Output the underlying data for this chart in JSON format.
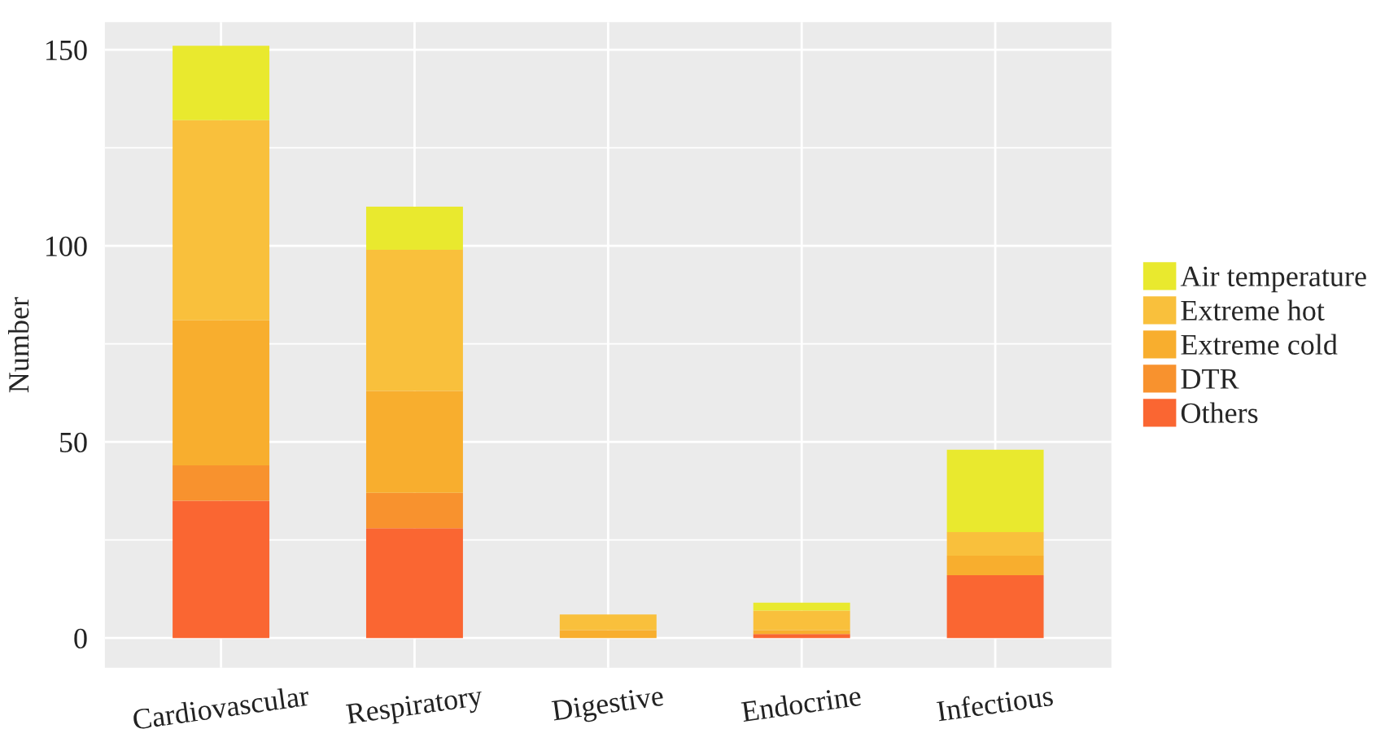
{
  "chart_data": {
    "type": "bar",
    "stacked": true,
    "ylabel": "Number",
    "categories": [
      "Cardiovascular",
      "Respiratory",
      "Digestive",
      "Endocrine",
      "Infectious"
    ],
    "series": [
      {
        "name": "Others",
        "color": "#fa6632",
        "values": [
          35,
          28,
          0,
          1,
          16
        ]
      },
      {
        "name": "DTR",
        "color": "#f8922e",
        "values": [
          9,
          9,
          0,
          0,
          0
        ]
      },
      {
        "name": "Extreme cold",
        "color": "#f8ae2e",
        "values": [
          37,
          26,
          2,
          1,
          5
        ]
      },
      {
        "name": "Extreme hot",
        "color": "#f9c03c",
        "values": [
          51,
          36,
          4,
          5,
          6
        ]
      },
      {
        "name": "Air temperature",
        "color": "#e9e92e",
        "values": [
          19,
          11,
          0,
          2,
          21
        ]
      }
    ],
    "ylim": [
      -7.6,
      157
    ],
    "yticks": [
      0,
      {
        "value": 25,
        "label": null
      },
      50,
      {
        "value": 75,
        "label": null
      },
      100,
      {
        "value": 125,
        "label": null
      },
      150
    ],
    "grid": true,
    "legend": "right"
  }
}
